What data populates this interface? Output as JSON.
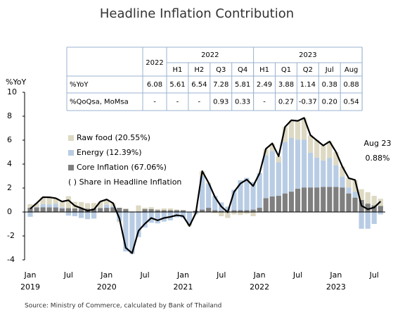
{
  "chart_data": {
    "type": "stacked_bar_line",
    "title": "Headline Inflation Contribution",
    "y_label": "%YoY",
    "source": "Source: Ministry of Commerce, calculated by Bank of Thailand",
    "note": "( ) Share in Headline Inflation",
    "annotation": [
      "Aug 23",
      "0.88%"
    ],
    "categories": [
      "Jan",
      null,
      null,
      null,
      null,
      null,
      "Jul",
      null,
      null,
      null,
      null,
      null,
      "Jan",
      null,
      null,
      null,
      null,
      null,
      "Jul",
      null,
      null,
      null,
      null,
      null,
      "Jan",
      null,
      null,
      null,
      null,
      null,
      "Jul",
      null,
      null,
      null,
      null,
      null,
      "Jan",
      null,
      null,
      null,
      null,
      null,
      "Jul",
      null,
      null,
      null,
      null,
      null,
      "Jan",
      null,
      null,
      null,
      null,
      null,
      "Jul",
      null
    ],
    "years": [
      "2019",
      "2020",
      "2021",
      "2022",
      "2023"
    ],
    "ylim": [
      -4,
      10
    ],
    "yticks": [
      -4,
      -2,
      0,
      2,
      4,
      6,
      8,
      10
    ],
    "series": [
      {
        "name": "Core Inflation (67.06%)",
        "color": "#7f7f7f",
        "values": [
          0.35,
          0.38,
          0.4,
          0.39,
          0.38,
          0.3,
          0.32,
          0.3,
          0.28,
          0.28,
          0.3,
          0.32,
          0.35,
          0.38,
          0.35,
          0.25,
          0.0,
          0.05,
          0.25,
          0.25,
          0.15,
          0.15,
          0.15,
          0.15,
          0.15,
          0.0,
          0.1,
          0.2,
          0.35,
          0.15,
          0.1,
          0.05,
          0.15,
          0.15,
          0.15,
          0.2,
          0.35,
          1.15,
          1.3,
          1.35,
          1.55,
          1.7,
          1.95,
          2.05,
          2.05,
          2.05,
          2.1,
          2.1,
          2.1,
          2.05,
          1.55,
          1.2,
          1.0,
          0.7,
          0.55,
          0.5
        ]
      },
      {
        "name": "Energy (12.39%)",
        "color": "#b8cce4",
        "values": [
          -0.4,
          0.05,
          0.25,
          0.25,
          0.3,
          0.1,
          -0.3,
          -0.35,
          -0.5,
          -0.6,
          -0.55,
          0.05,
          0.25,
          0.1,
          -0.75,
          -3.3,
          -3.5,
          -2.1,
          -1.3,
          -0.9,
          -0.95,
          -0.8,
          -0.7,
          -0.45,
          -0.5,
          -1.0,
          -0.15,
          2.8,
          2.0,
          1.2,
          0.7,
          0.4,
          1.7,
          2.5,
          2.7,
          2.3,
          2.9,
          3.6,
          3.8,
          2.8,
          4.3,
          4.5,
          4.1,
          4.0,
          2.9,
          2.5,
          2.2,
          2.4,
          1.8,
          0.9,
          0.5,
          0.5,
          -1.4,
          -1.4,
          -1.0,
          -0.2
        ]
      },
      {
        "name": "Raw food (20.55%)",
        "color": "#ddd9c3",
        "values": [
          0.3,
          0.3,
          0.6,
          0.6,
          0.5,
          0.5,
          1.0,
          0.55,
          0.55,
          0.45,
          0.45,
          0.5,
          0.45,
          0.25,
          -0.1,
          0.05,
          0.05,
          0.5,
          0.1,
          0.15,
          0.1,
          0.15,
          0.15,
          0.05,
          0.0,
          -0.15,
          -0.05,
          0.4,
          0.1,
          -0.1,
          -0.35,
          -0.5,
          -0.2,
          -0.25,
          -0.15,
          -0.35,
          0.0,
          0.5,
          0.6,
          0.5,
          1.25,
          1.45,
          1.55,
          1.8,
          1.45,
          1.45,
          1.25,
          1.4,
          1.1,
          0.85,
          0.8,
          0.95,
          0.9,
          0.95,
          0.8,
          0.6
        ]
      }
    ],
    "line": {
      "name": "Headline",
      "color": "#000000",
      "values": [
        0.27,
        0.73,
        1.24,
        1.23,
        1.15,
        0.87,
        0.98,
        0.52,
        0.32,
        0.11,
        0.21,
        0.87,
        1.05,
        0.74,
        -0.54,
        -2.99,
        -3.44,
        -1.57,
        -0.98,
        -0.5,
        -0.7,
        -0.5,
        -0.41,
        -0.27,
        -0.34,
        -1.17,
        -0.08,
        3.41,
        2.44,
        1.25,
        0.45,
        -0.02,
        1.68,
        2.38,
        2.71,
        2.17,
        3.23,
        5.28,
        5.73,
        4.65,
        7.1,
        7.66,
        7.61,
        7.86,
        6.41,
        5.98,
        5.55,
        5.89,
        5.02,
        3.79,
        2.83,
        2.67,
        0.53,
        0.23,
        0.38,
        0.88
      ]
    }
  },
  "table": {
    "first_col": "2022",
    "groups": [
      {
        "label": "2022",
        "span": 4
      },
      {
        "label": "2023",
        "span": 5
      }
    ],
    "columns": [
      "H1",
      "H2",
      "Q3",
      "Q4",
      "H1",
      "Q1",
      "Q2",
      "Jul",
      "Aug"
    ],
    "rows": [
      {
        "label": "%YoY",
        "cells": [
          "6.08",
          "5.61",
          "6.54",
          "7.28",
          "5.81",
          "2.49",
          "3.88",
          "1.14",
          "0.38",
          "0.88"
        ]
      },
      {
        "label": "%QoQsa, MoMsa",
        "cells": [
          "-",
          "-",
          "-",
          "0.93",
          "0.33",
          "-",
          "0.27",
          "-0.37",
          "0.20",
          "0.54"
        ]
      }
    ]
  }
}
